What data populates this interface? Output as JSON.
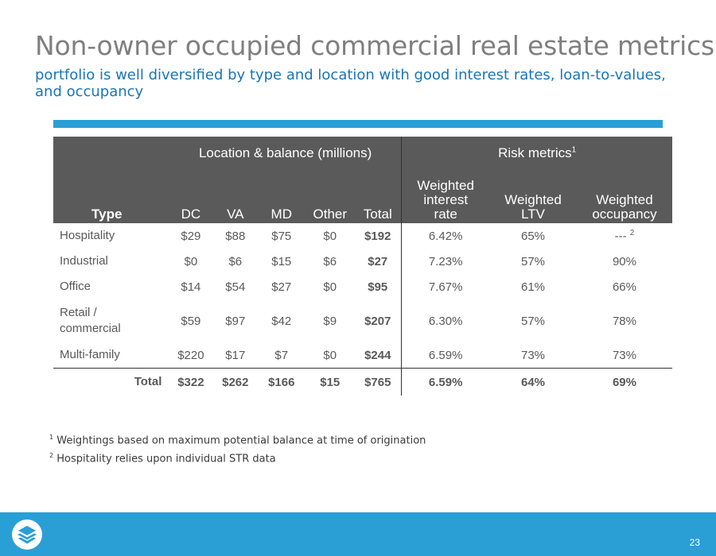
{
  "header": {
    "title": "Non-owner occupied commercial real estate metrics",
    "subtitle": "portfolio is well diversified by type and location with good interest rates, loan-to-values, and occupancy"
  },
  "table": {
    "group_headers": {
      "location": "Location & balance (millions)",
      "risk": "Risk metrics",
      "risk_sup": "1"
    },
    "columns": {
      "type": "Type",
      "dc": "DC",
      "va": "VA",
      "md": "MD",
      "other": "Other",
      "total": "Total",
      "rate_l1": "Weighted",
      "rate_l2": "interest",
      "rate_l3": "rate",
      "ltv_l1": "Weighted",
      "ltv_l2": "LTV",
      "occ_l1": "Weighted",
      "occ_l2": "occupancy"
    },
    "rows": [
      {
        "type_l1": "Hospitality",
        "type_l2": "",
        "dc": "$29",
        "va": "$88",
        "md": "$75",
        "other": "$0",
        "total": "$192",
        "rate": "6.42%",
        "ltv": "65%",
        "occupancy": "---",
        "occupancy_sup": "2"
      },
      {
        "type_l1": "Industrial",
        "type_l2": "",
        "dc": "$0",
        "va": "$6",
        "md": "$15",
        "other": "$6",
        "total": "$27",
        "rate": "7.23%",
        "ltv": "57%",
        "occupancy": "90%",
        "occupancy_sup": ""
      },
      {
        "type_l1": "Office",
        "type_l2": "",
        "dc": "$14",
        "va": "$54",
        "md": "$27",
        "other": "$0",
        "total": "$95",
        "rate": "7.67%",
        "ltv": "61%",
        "occupancy": "66%",
        "occupancy_sup": ""
      },
      {
        "type_l1": "Retail /",
        "type_l2": "commercial",
        "dc": "$59",
        "va": "$97",
        "md": "$42",
        "other": "$9",
        "total": "$207",
        "rate": "6.30%",
        "ltv": "57%",
        "occupancy": "78%",
        "occupancy_sup": ""
      },
      {
        "type_l1": "Multi-family",
        "type_l2": "",
        "dc": "$220",
        "va": "$17",
        "md": "$7",
        "other": "$0",
        "total": "$244",
        "rate": "6.59%",
        "ltv": "73%",
        "occupancy": "73%",
        "occupancy_sup": ""
      }
    ],
    "total_row": {
      "label": "Total",
      "dc": "$322",
      "va": "$262",
      "md": "$166",
      "other": "$15",
      "total": "$765",
      "rate": "6.59%",
      "ltv": "64%",
      "occupancy": "69%"
    }
  },
  "footnotes": [
    {
      "marker": "1",
      "text": "Weightings based on maximum potential balance at time of origination"
    },
    {
      "marker": "2",
      "text": "Hospitality relies upon individual STR data"
    }
  ],
  "footer": {
    "page_number": "23",
    "logo_icon": "layered-wave-logo-icon"
  },
  "colors": {
    "title": "#7f7f7f",
    "subtitle": "#1a75b7",
    "accent_bar": "#2a9fd6",
    "table_header": "#5a5a5a",
    "footer": "#2a9fd6"
  }
}
